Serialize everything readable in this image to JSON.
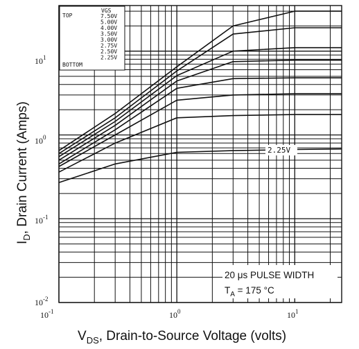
{
  "chart_data": {
    "type": "line",
    "xscale": "log",
    "yscale": "log",
    "xlim": [
      0.1,
      25
    ],
    "ylim": [
      0.01,
      35
    ],
    "xlabel": "V_DS, Drain-to-Source Voltage (volts)",
    "ylabel": "I_D, Drain Current (Amps)",
    "x_ticks": [
      "10^-1",
      "10^0",
      "10^1"
    ],
    "y_ticks": [
      "10^-2",
      "10^-1",
      "10^0",
      "10^1"
    ],
    "legend": {
      "header": "VGS",
      "top_label": "TOP",
      "bottom_label": "BOTTOM",
      "entries": [
        "7.50V",
        "5.00V",
        "4.00V",
        "3.50V",
        "3.00V",
        "2.75V",
        "2.50V",
        "2.25V"
      ]
    },
    "callout": "2.25V",
    "note_line1": "20 μs PULSE WIDTH",
    "note_line2": "T_A = 175 °C",
    "series": [
      {
        "name": "7.50V",
        "x": [
          0.1,
          0.3,
          1,
          3,
          10,
          25
        ],
        "y": [
          0.65,
          1.8,
          6.5,
          20,
          30,
          30
        ]
      },
      {
        "name": "5.00V",
        "x": [
          0.1,
          0.3,
          1,
          3,
          10,
          25
        ],
        "y": [
          0.6,
          1.6,
          5.8,
          16,
          19,
          19
        ]
      },
      {
        "name": "4.00V",
        "x": [
          0.1,
          0.3,
          1,
          3,
          10,
          25
        ],
        "y": [
          0.55,
          1.45,
          5.1,
          10,
          11,
          11
        ]
      },
      {
        "name": "3.50V",
        "x": [
          0.1,
          0.3,
          1,
          3,
          10,
          25
        ],
        "y": [
          0.5,
          1.3,
          4.4,
          7.5,
          7.8,
          7.8
        ]
      },
      {
        "name": "3.00V",
        "x": [
          0.1,
          0.3,
          1,
          3,
          10,
          25
        ],
        "y": [
          0.45,
          1.15,
          3.6,
          4.7,
          4.8,
          4.8
        ]
      },
      {
        "name": "2.75V",
        "x": [
          0.1,
          0.3,
          1,
          3,
          10,
          25
        ],
        "y": [
          0.42,
          1.0,
          2.6,
          3.0,
          3.1,
          3.1
        ]
      },
      {
        "name": "2.50V",
        "x": [
          0.1,
          0.3,
          1,
          3,
          10,
          25
        ],
        "y": [
          0.36,
          0.8,
          1.6,
          1.7,
          1.75,
          1.75
        ]
      },
      {
        "name": "2.25V",
        "x": [
          0.1,
          0.3,
          1,
          3,
          10,
          25
        ],
        "y": [
          0.27,
          0.45,
          0.62,
          0.65,
          0.67,
          0.68
        ]
      }
    ]
  }
}
